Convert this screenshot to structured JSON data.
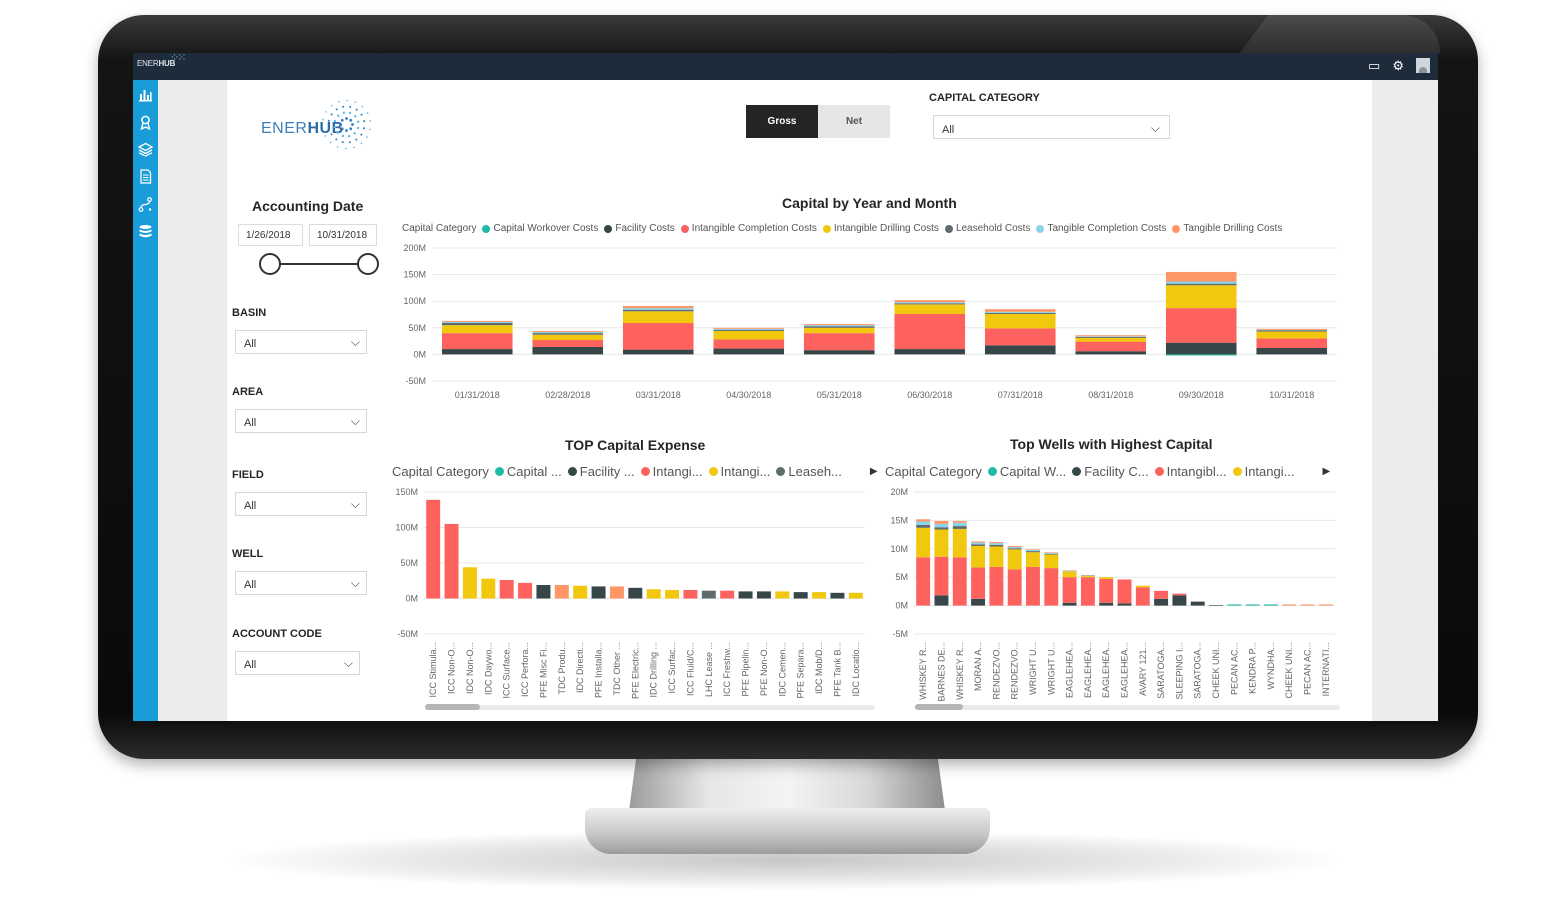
{
  "brand": {
    "logo_light": "ENER",
    "logo_bold": "HUB"
  },
  "topbar": {
    "logo_light": "ENER",
    "logo_bold": "HUB",
    "icons": [
      "inbox-icon",
      "gear-icon",
      "user-avatar-icon"
    ]
  },
  "nav": {
    "icons": [
      "bar-chart-icon",
      "award-icon",
      "layers-icon",
      "document-icon",
      "path-icon",
      "database-icon"
    ]
  },
  "toggle": {
    "gross": "Gross",
    "net": "Net"
  },
  "capital_filter": {
    "label": "CAPITAL CATEGORY",
    "value": "All"
  },
  "accounting": {
    "title": "Accounting Date",
    "start": "1/26/2018",
    "end": "10/31/2018"
  },
  "filters": [
    {
      "label": "BASIN",
      "value": "All"
    },
    {
      "label": "AREA",
      "value": "All"
    },
    {
      "label": "FIELD",
      "value": "All"
    },
    {
      "label": "WELL",
      "value": "All"
    },
    {
      "label": "ACCOUNT CODE",
      "value": "All"
    }
  ],
  "colors": {
    "Capital Workover Costs": "#1fbba6",
    "Facility Costs": "#374649",
    "Intangible Completion Costs": "#fd625e",
    "Intangible Drilling Costs": "#f2c80f",
    "Leasehold Costs": "#5f6b6d",
    "Tangible Completion Costs": "#8ad4eb",
    "Tangible Drilling Costs": "#fe9666"
  },
  "chart_data": [
    {
      "type": "bar",
      "stacked": true,
      "title": "Capital by Year and Month",
      "legend_title": "Capital Category",
      "categories": [
        "01/31/2018",
        "02/28/2018",
        "03/31/2018",
        "04/30/2018",
        "05/31/2018",
        "06/30/2018",
        "07/31/2018",
        "08/31/2018",
        "09/30/2018",
        "10/31/2018"
      ],
      "ylim": [
        -50,
        200
      ],
      "yticks": [
        "-50M",
        "0M",
        "50M",
        "100M",
        "150M",
        "200M"
      ],
      "grid": true,
      "series": [
        {
          "name": "Capital Workover Costs",
          "values": [
            0,
            0,
            0,
            0,
            0,
            0,
            0,
            0,
            -2,
            0
          ]
        },
        {
          "name": "Facility Costs",
          "values": [
            10,
            14,
            9,
            11,
            8,
            10,
            17,
            6,
            22,
            12
          ]
        },
        {
          "name": "Intangible Completion Costs",
          "values": [
            30,
            13,
            50,
            17,
            32,
            66,
            32,
            18,
            65,
            18
          ]
        },
        {
          "name": "Intangible Drilling Costs",
          "values": [
            15,
            10,
            22,
            16,
            10,
            18,
            27,
            7,
            43,
            13
          ]
        },
        {
          "name": "Leasehold Costs",
          "values": [
            4,
            3,
            3,
            2,
            3,
            2,
            2,
            2,
            3,
            2
          ]
        },
        {
          "name": "Tangible Completion Costs",
          "values": [
            2,
            2,
            3,
            2,
            2,
            2,
            2,
            1,
            4,
            1
          ]
        },
        {
          "name": "Tangible Drilling Costs",
          "values": [
            2,
            2,
            4,
            2,
            2,
            4,
            5,
            2,
            18,
            2
          ]
        }
      ]
    },
    {
      "type": "bar",
      "title": "TOP Capital Expense",
      "legend_title": "Capital Category",
      "legend_items": [
        "Capital ...",
        "Facility ...",
        "Intangi...",
        "Intangi...",
        "Leaseh..."
      ],
      "ylim": [
        -50,
        150
      ],
      "yticks": [
        "-50M",
        "0M",
        "50M",
        "100M",
        "150M"
      ],
      "grid": true,
      "categories": [
        "ICC Stimula...",
        "ICC Non-O...",
        "IDC Non-O...",
        "IDC Daywo...",
        "ICC Surface...",
        "ICC Perfora...",
        "PFE Misc Fi...",
        "TDC Produ...",
        "IDC Directi...",
        "PFE Installa...",
        "TDC Other ...",
        "PFE Electric...",
        "IDC Drilling ...",
        "ICC Surfac...",
        "ICC Fluid/C...",
        "LHC Lease ...",
        "ICC Freshw...",
        "PFE Pipelin...",
        "PFE Non-O...",
        "IDC Cemen...",
        "PFE Separa...",
        "IDC Mob/D...",
        "PFE Tank B...",
        "IDC Locatio..."
      ],
      "values": [
        139,
        105,
        44,
        28,
        26,
        22,
        19,
        19,
        18,
        17,
        17,
        15,
        13,
        12,
        12,
        11,
        11,
        10,
        10,
        10,
        9,
        9,
        8,
        8
      ],
      "bar_categories": [
        "Intangible Completion Costs",
        "Intangible Completion Costs",
        "Intangible Drilling Costs",
        "Intangible Drilling Costs",
        "Intangible Completion Costs",
        "Intangible Completion Costs",
        "Facility Costs",
        "Tangible Drilling Costs",
        "Intangible Drilling Costs",
        "Facility Costs",
        "Tangible Drilling Costs",
        "Facility Costs",
        "Intangible Drilling Costs",
        "Intangible Drilling Costs",
        "Intangible Completion Costs",
        "Leasehold Costs",
        "Intangible Completion Costs",
        "Facility Costs",
        "Facility Costs",
        "Intangible Drilling Costs",
        "Facility Costs",
        "Intangible Drilling Costs",
        "Facility Costs",
        "Intangible Drilling Costs"
      ]
    },
    {
      "type": "bar",
      "stacked": true,
      "title": "Top Wells with Highest Capital",
      "legend_title": "Capital Category",
      "legend_items": [
        "Capital W...",
        "Facility C...",
        "Intangibl...",
        "Intangi..."
      ],
      "ylim": [
        -5,
        20
      ],
      "yticks": [
        "-5M",
        "0M",
        "5M",
        "10M",
        "15M",
        "20M"
      ],
      "grid": true,
      "categories": [
        "WHISKEY R...",
        "BARNES DE...",
        "WHISKEY R...",
        "MORAN A...",
        "RENDEZVO...",
        "RENDEZVO...",
        "WRIGHT U...",
        "WRIGHT U...",
        "EAGLEHEA...",
        "EAGLEHEA...",
        "EAGLEHEA...",
        "EAGLEHEA...",
        "AVARY 121...",
        "SARATOGA...",
        "SLEEPING I...",
        "SARATOGA...",
        "CHEEK UNI...",
        "PECAN AC...",
        "KENDRA P...",
        "WYNDHA...",
        "CHEEK UNI...",
        "PECAN AC...",
        "INTERNATI..."
      ],
      "series": [
        {
          "name": "Capital Workover Costs",
          "values": [
            0,
            0,
            0,
            0,
            0,
            0,
            0,
            0,
            0,
            0,
            0,
            0,
            0,
            0,
            0,
            0,
            0,
            0.2,
            0.2,
            0.2,
            0,
            0,
            0
          ]
        },
        {
          "name": "Facility Costs",
          "values": [
            0,
            1.8,
            0,
            1.2,
            0,
            0,
            0,
            0,
            0.5,
            0,
            0.5,
            0.4,
            0,
            1.2,
            1.8,
            0.7,
            0.1,
            0,
            0,
            0,
            0,
            0,
            0
          ]
        },
        {
          "name": "Intangible Completion Costs",
          "values": [
            8.5,
            6.8,
            8.5,
            5.5,
            6.8,
            6.4,
            6.8,
            6.6,
            4.5,
            5,
            4.2,
            4.2,
            3.2,
            1.4,
            0.3,
            0,
            0,
            0,
            0,
            0,
            0,
            0,
            0
          ]
        },
        {
          "name": "Intangible Drilling Costs",
          "values": [
            5.2,
            4.8,
            5,
            3.8,
            3.6,
            3.5,
            2.6,
            2.4,
            1,
            0.2,
            0.3,
            0,
            0.3,
            0,
            0,
            0,
            0,
            0,
            0,
            0,
            0,
            0,
            0
          ]
        },
        {
          "name": "Leasehold Costs",
          "values": [
            0.5,
            0.4,
            0.5,
            0.3,
            0.3,
            0.2,
            0.2,
            0.1,
            0,
            0,
            0,
            0,
            0,
            0,
            0,
            0,
            0,
            0,
            0,
            0,
            0,
            0,
            0
          ]
        },
        {
          "name": "Tangible Completion Costs",
          "values": [
            0.6,
            0.6,
            0.6,
            0.3,
            0.3,
            0.2,
            0.2,
            0.2,
            0.1,
            0.1,
            0,
            0,
            0,
            0,
            0,
            0,
            0,
            0,
            0,
            0,
            0,
            0,
            0
          ]
        },
        {
          "name": "Tangible Drilling Costs",
          "values": [
            0.4,
            0.5,
            0.3,
            0.2,
            0.2,
            0.2,
            0.1,
            0.1,
            0.1,
            0.1,
            0,
            0,
            0,
            0,
            0,
            0,
            0,
            0,
            0,
            0,
            0.2,
            0.2,
            0.2
          ]
        }
      ]
    }
  ]
}
